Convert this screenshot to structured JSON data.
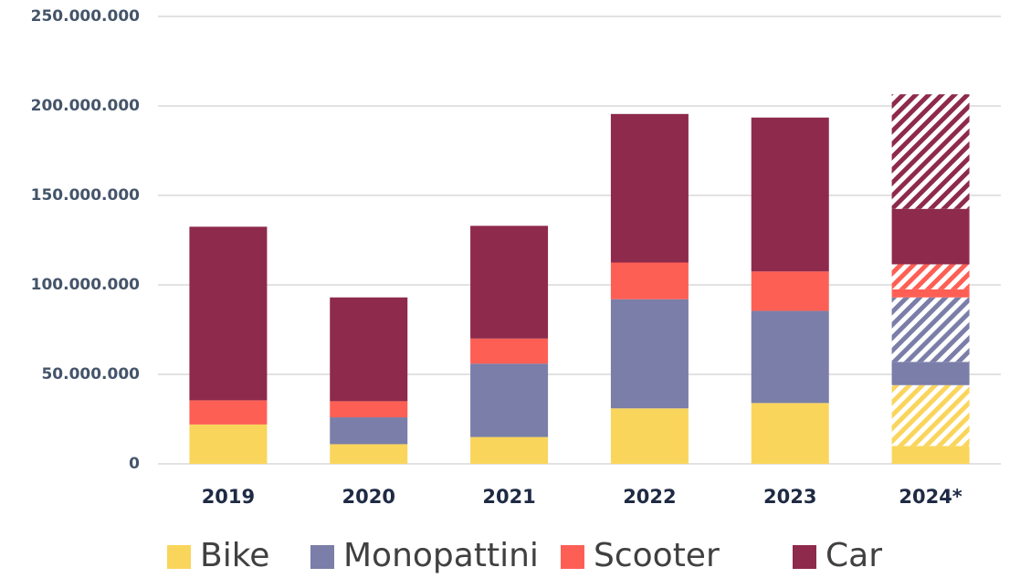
{
  "chart_data": {
    "type": "stacked_bar",
    "categories": [
      "2019",
      "2020",
      "2021",
      "2022",
      "2023",
      "2024*"
    ],
    "series": [
      {
        "name": "Bike",
        "color": "#fad55c",
        "values": [
          22000000,
          11000000,
          15000000,
          31000000,
          34000000,
          10000000
        ],
        "projected_values": [
          null,
          null,
          null,
          null,
          null,
          34000000
        ]
      },
      {
        "name": "Monopattini",
        "color": "#7a7ea8",
        "values": [
          0,
          15000000,
          41000000,
          61000000,
          51500000,
          13000000
        ],
        "projected_values": [
          null,
          null,
          null,
          null,
          null,
          36000000
        ]
      },
      {
        "name": "Scooter",
        "color": "#fe5f55",
        "values": [
          13500000,
          9000000,
          14000000,
          20500000,
          22000000,
          4500000
        ],
        "projected_values": [
          null,
          null,
          null,
          null,
          null,
          14000000
        ]
      },
      {
        "name": "Car",
        "color": "#8e2a4b",
        "values": [
          97000000,
          58000000,
          63000000,
          83000000,
          86000000,
          31000000
        ],
        "projected_values": [
          null,
          null,
          null,
          null,
          null,
          64000000
        ]
      }
    ],
    "ylim": [
      0,
      250000000
    ],
    "yticks": [
      0,
      {
        "value": 50000000,
        "label": "50.000.000"
      },
      {
        "value": 100000000,
        "label": "100.000.000"
      },
      {
        "value": 150000000,
        "label": "150.000.000"
      },
      {
        "value": 200000000,
        "label": "200.000.000"
      },
      {
        "value": 250000000,
        "label": "250.000.000"
      }
    ],
    "grid": true
  }
}
